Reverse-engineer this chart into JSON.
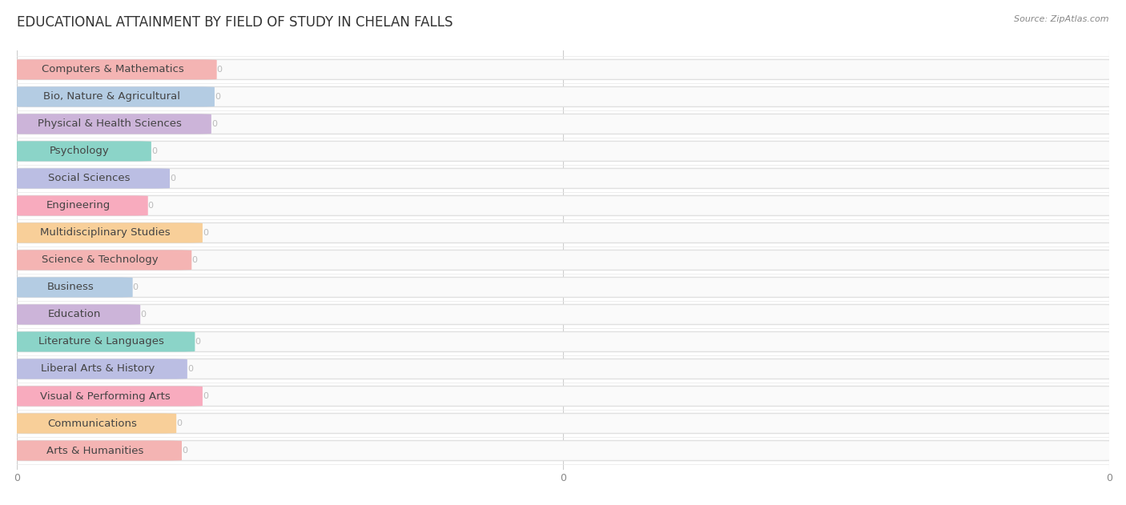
{
  "title": "EDUCATIONAL ATTAINMENT BY FIELD OF STUDY IN CHELAN FALLS",
  "source": "Source: ZipAtlas.com",
  "categories": [
    "Computers & Mathematics",
    "Bio, Nature & Agricultural",
    "Physical & Health Sciences",
    "Psychology",
    "Social Sciences",
    "Engineering",
    "Multidisciplinary Studies",
    "Science & Technology",
    "Business",
    "Education",
    "Literature & Languages",
    "Liberal Arts & History",
    "Visual & Performing Arts",
    "Communications",
    "Arts & Humanities"
  ],
  "values": [
    0,
    0,
    0,
    0,
    0,
    0,
    0,
    0,
    0,
    0,
    0,
    0,
    0,
    0,
    0
  ],
  "bar_colors": [
    "#F4A8A7",
    "#A8C4E0",
    "#C4A8D4",
    "#78CEC0",
    "#B0B4E0",
    "#F89EB4",
    "#F8C888",
    "#F4A8A7",
    "#A8C4E0",
    "#C4A8D4",
    "#78CEC0",
    "#B0B4E0",
    "#F89EB4",
    "#F8C888",
    "#F4A8A7"
  ],
  "background_color": "#ffffff",
  "bar_bg_color": "#f5f5f5",
  "row_bg_colors": [
    "#f8f8f8",
    "#f0f0f0"
  ],
  "title_fontsize": 12,
  "label_fontsize": 9.5,
  "tick_fontsize": 9,
  "value_label_color": "#ccaaaa",
  "text_color": "#555555"
}
